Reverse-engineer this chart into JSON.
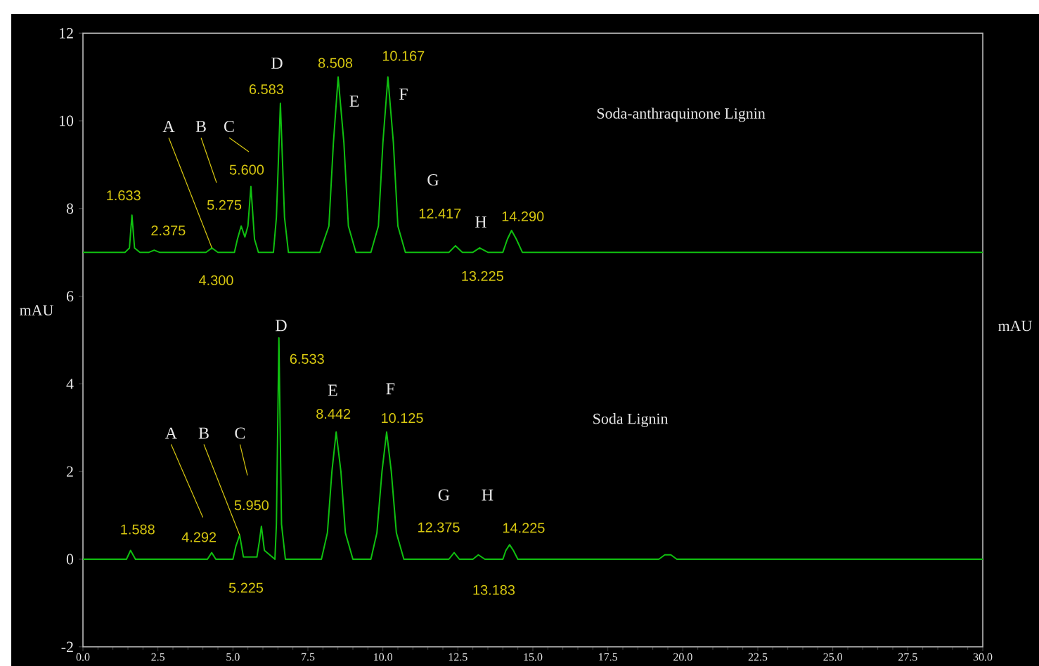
{
  "chart_data": {
    "type": "line",
    "ylabel": "mAU",
    "xlim": [
      0,
      30
    ],
    "ylim": [
      -2,
      12
    ],
    "xticks": [
      {
        "value": 0,
        "label": "0.0"
      },
      {
        "value": 2.5,
        "label": "2.5"
      },
      {
        "value": 5,
        "label": "5.0"
      },
      {
        "value": 7.5,
        "label": "7.5"
      },
      {
        "value": 10,
        "label": "10.0"
      },
      {
        "value": 12.5,
        "label": "12.5"
      },
      {
        "value": 15,
        "label": "15.0"
      },
      {
        "value": 17.5,
        "label": "17.5"
      },
      {
        "value": 20,
        "label": "20.0"
      },
      {
        "value": 22.5,
        "label": "22.5"
      },
      {
        "value": 25,
        "label": "25.0"
      },
      {
        "value": 27.5,
        "label": "27.5"
      },
      {
        "value": 30,
        "label": "30.0"
      }
    ],
    "yticks": [
      -2,
      0,
      2,
      4,
      6,
      8,
      10,
      12
    ],
    "series": [
      {
        "color": "#10c010",
        "x": [
          0,
          1.4,
          1.55,
          1.633,
          1.72,
          1.9,
          2.2,
          2.375,
          2.55,
          4.1,
          4.3,
          4.5,
          5.05,
          5.15,
          5.275,
          5.4,
          5.5,
          5.6,
          5.72,
          5.85,
          6.35,
          6.45,
          6.583,
          6.72,
          6.85,
          7.9,
          8.2,
          8.35,
          8.508,
          8.7,
          8.85,
          9.1,
          9.6,
          9.85,
          10.0,
          10.167,
          10.35,
          10.5,
          10.75,
          12.2,
          12.417,
          12.65,
          13.0,
          13.225,
          13.5,
          14.0,
          14.15,
          14.29,
          14.45,
          14.65,
          30
        ],
        "values": [
          7.0,
          7.0,
          7.1,
          7.85,
          7.1,
          7.0,
          7.0,
          7.05,
          7.0,
          7.0,
          7.1,
          7.0,
          7.0,
          7.3,
          7.6,
          7.35,
          7.6,
          8.5,
          7.3,
          7.0,
          7.0,
          7.8,
          10.4,
          7.8,
          7.0,
          7.0,
          7.6,
          9.5,
          11.0,
          9.5,
          7.6,
          7.0,
          7.0,
          7.6,
          9.5,
          11.0,
          9.5,
          7.6,
          7.0,
          7.0,
          7.15,
          7.0,
          7.0,
          7.1,
          7.0,
          7.0,
          7.3,
          7.5,
          7.3,
          7.0,
          7.0
        ]
      },
      {
        "color": "#10c010",
        "x": [
          0,
          1.45,
          1.588,
          1.75,
          4.15,
          4.292,
          4.43,
          5.0,
          5.1,
          5.225,
          5.35,
          5.8,
          5.88,
          5.95,
          6.05,
          6.4,
          6.45,
          6.533,
          6.62,
          6.75,
          7.95,
          8.15,
          8.3,
          8.442,
          8.6,
          8.75,
          9.0,
          9.6,
          9.8,
          9.97,
          10.125,
          10.28,
          10.45,
          10.7,
          12.2,
          12.375,
          12.55,
          13.0,
          13.183,
          13.4,
          14.0,
          14.1,
          14.225,
          14.35,
          14.5,
          19.2,
          19.4,
          19.6,
          19.8,
          30
        ],
        "values": [
          0,
          0,
          0.2,
          0,
          0,
          0.15,
          0,
          0,
          0.3,
          0.55,
          0.05,
          0.05,
          0.4,
          0.75,
          0.2,
          0,
          0.8,
          5.05,
          0.8,
          0,
          0,
          0.6,
          2.0,
          2.9,
          2.0,
          0.6,
          0,
          0,
          0.6,
          2.0,
          2.9,
          2.0,
          0.6,
          0,
          0,
          0.15,
          0,
          0,
          0.1,
          0,
          0,
          0.2,
          0.33,
          0.2,
          0,
          0,
          0.1,
          0.1,
          0,
          0
        ]
      }
    ],
    "annotations": [
      {
        "text": "1.633",
        "x": 1.633,
        "y": 7.85
      },
      {
        "text": "2.375",
        "x": 2.375,
        "y": 7.05
      },
      {
        "text": "4.300",
        "x": 4.3,
        "y": 7.1
      },
      {
        "text": "5.275",
        "x": 5.275,
        "y": 7.6
      },
      {
        "text": "5.600",
        "x": 5.6,
        "y": 8.5
      },
      {
        "text": "6.583",
        "x": 6.583,
        "y": 10.4
      },
      {
        "text": "8.508",
        "x": 8.508,
        "y": 11.0
      },
      {
        "text": "10.167",
        "x": 10.167,
        "y": 11.0
      },
      {
        "text": "12.417",
        "x": 12.417,
        "y": 7.15
      },
      {
        "text": "13.225",
        "x": 13.225,
        "y": 7.1
      },
      {
        "text": "14.290",
        "x": 14.29,
        "y": 7.5
      },
      {
        "text": "A",
        "x": 4.3,
        "y": 7.1
      },
      "B",
      "C",
      "D",
      "E",
      "F",
      "G",
      "H",
      {
        "text": "1.588",
        "x": 1.588,
        "y": 0.2
      },
      {
        "text": "4.292",
        "x": 4.292,
        "y": 0.15
      },
      "5.225",
      {
        "text": "5.950",
        "x": 5.95,
        "y": 0.75
      },
      {
        "text": "6.533",
        "x": 6.533,
        "y": 5.05
      },
      {
        "text": "8.442",
        "x": 8.442,
        "y": 2.9
      },
      {
        "text": "10.125",
        "x": 10.125,
        "y": 2.9
      },
      {
        "text": "12.375",
        "x": 12.375,
        "y": 0.15
      },
      {
        "text": "13.183",
        "x": 13.183,
        "y": 0.1
      },
      {
        "text": "14.225",
        "x": 14.225,
        "y": 0.33
      },
      "A",
      {
        "text": "B",
        "x": 5.225,
        "y": 0.55
      },
      "C",
      "D",
      "E",
      "F",
      "G",
      "H",
      "mAU",
      "Soda-anthraquinone Lignin",
      "Soda Lignin"
    ]
  }
}
